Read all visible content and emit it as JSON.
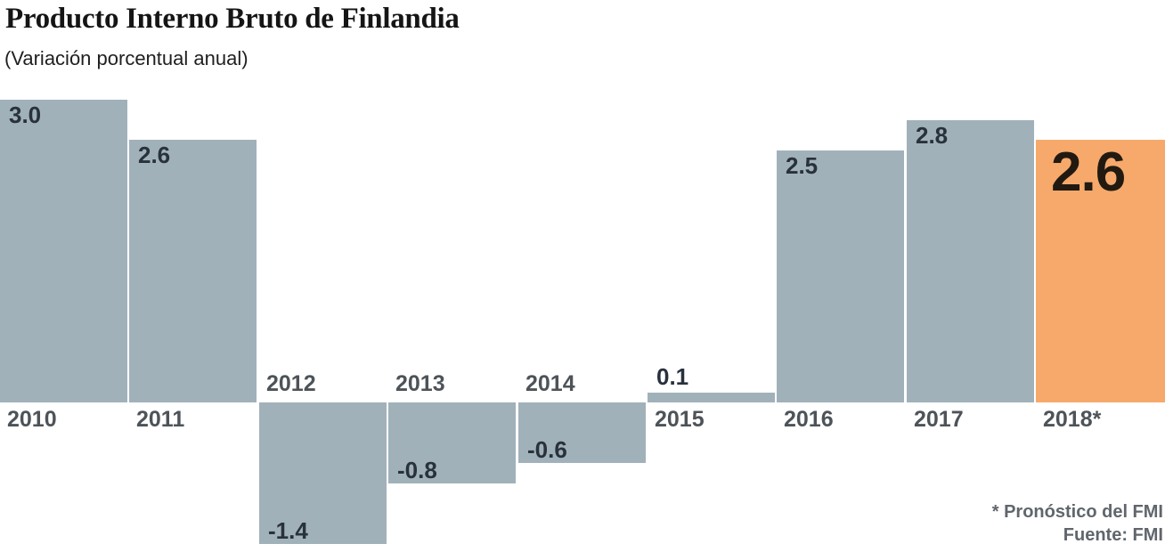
{
  "header": {
    "title": "Producto Interno Bruto de Finlandia",
    "subtitle": "(Variación porcentual anual)"
  },
  "footer": {
    "note": "* Pronóstico del FMI",
    "source": "Fuente: FMI"
  },
  "colors": {
    "bar": "#a1b1ba",
    "highlight_bar": "#f6a96b",
    "value_label": "#28313c",
    "highlight_value_label": "#221a10",
    "year_label": "#4d5358"
  },
  "chart_data": {
    "type": "bar",
    "title": "Producto Interno Bruto de Finlandia",
    "subtitle": "(Variación porcentual anual)",
    "categories": [
      "2010",
      "2011",
      "2012",
      "2013",
      "2014",
      "2015",
      "2016",
      "2017",
      "2018*"
    ],
    "values": [
      3.0,
      2.6,
      -1.4,
      -0.8,
      -0.6,
      0.1,
      2.5,
      2.8,
      2.6
    ],
    "value_labels": [
      "3.0",
      "2.6",
      "-1.4",
      "-0.8",
      "-0.6",
      "0.1",
      "2.5",
      "2.8",
      "2.6"
    ],
    "highlight_index": 8,
    "ylim": [
      -1.6,
      3.2
    ],
    "grid": false,
    "legend": false,
    "annotations": [
      "* Pronóstico del FMI",
      "Fuente: FMI"
    ]
  }
}
